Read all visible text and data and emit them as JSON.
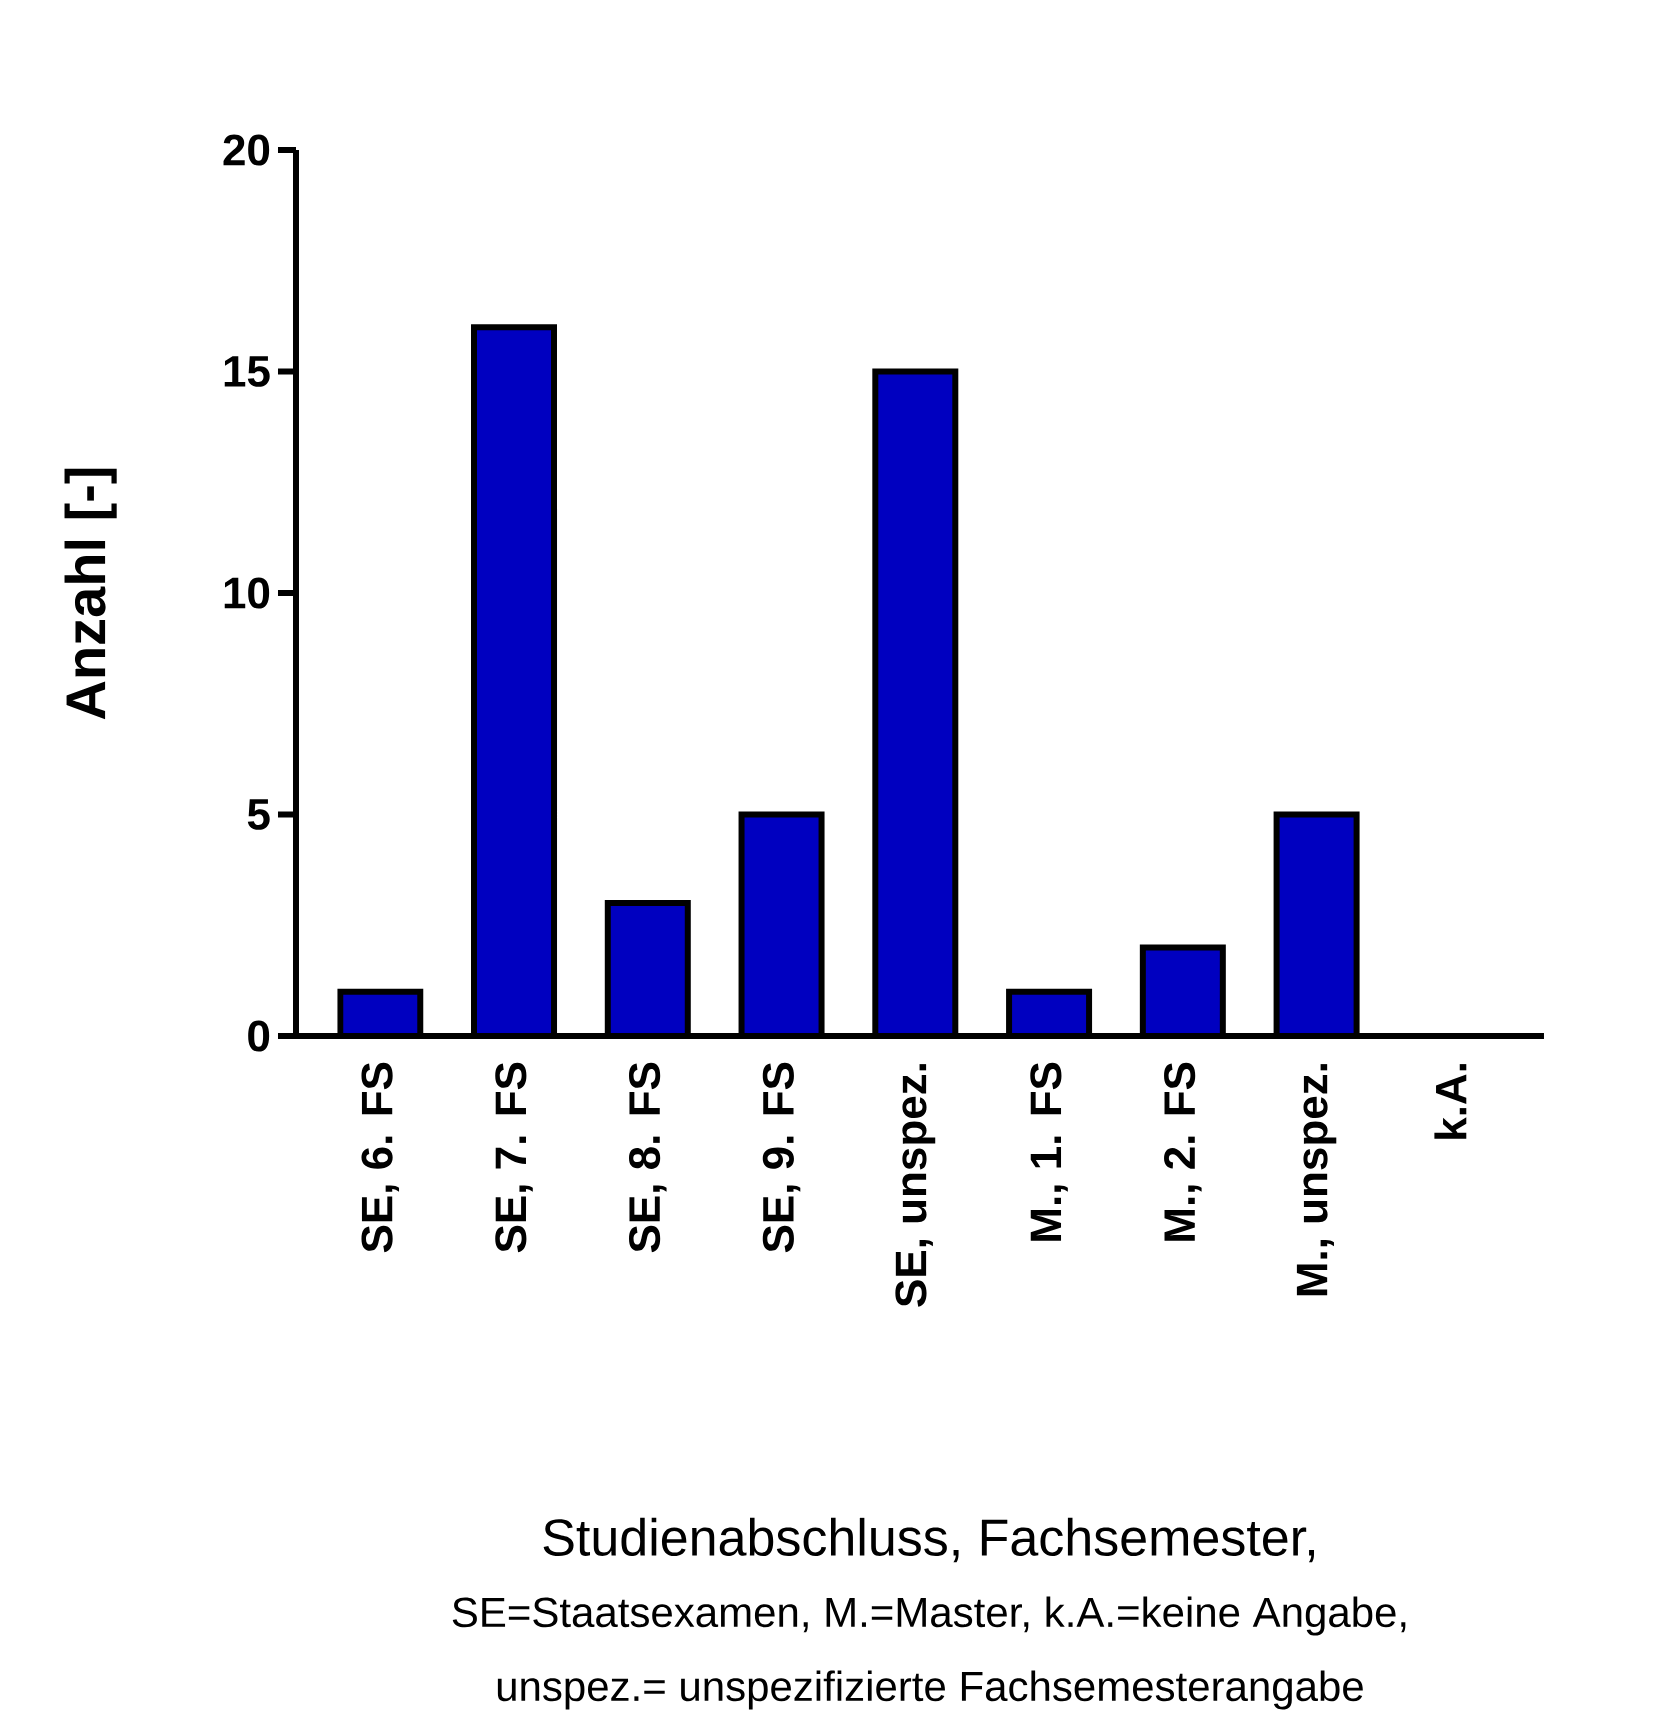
{
  "chart_data": {
    "type": "bar",
    "categories": [
      "SE, 6. FS",
      "SE, 7. FS",
      "SE, 8. FS",
      "SE, 9. FS",
      "SE, unspez.",
      "M., 1. FS",
      "M., 2. FS",
      "M., unspez.",
      "k.A."
    ],
    "values": [
      1,
      16,
      3,
      5,
      15,
      1,
      2,
      5,
      0
    ],
    "color": "#0000c0",
    "ylim": [
      0,
      20
    ],
    "yticks": [
      0,
      5,
      10,
      15,
      20
    ],
    "ylabel": "Anzahl [-]",
    "xlabel": "Studienabschluss, Fachsemester,",
    "annotations": [
      "SE=Staatsexamen, M.=Master, k.A.=keine Angabe,",
      "unspez.= unspezifizierte Fachsemesterangabe"
    ],
    "grid": false
  }
}
